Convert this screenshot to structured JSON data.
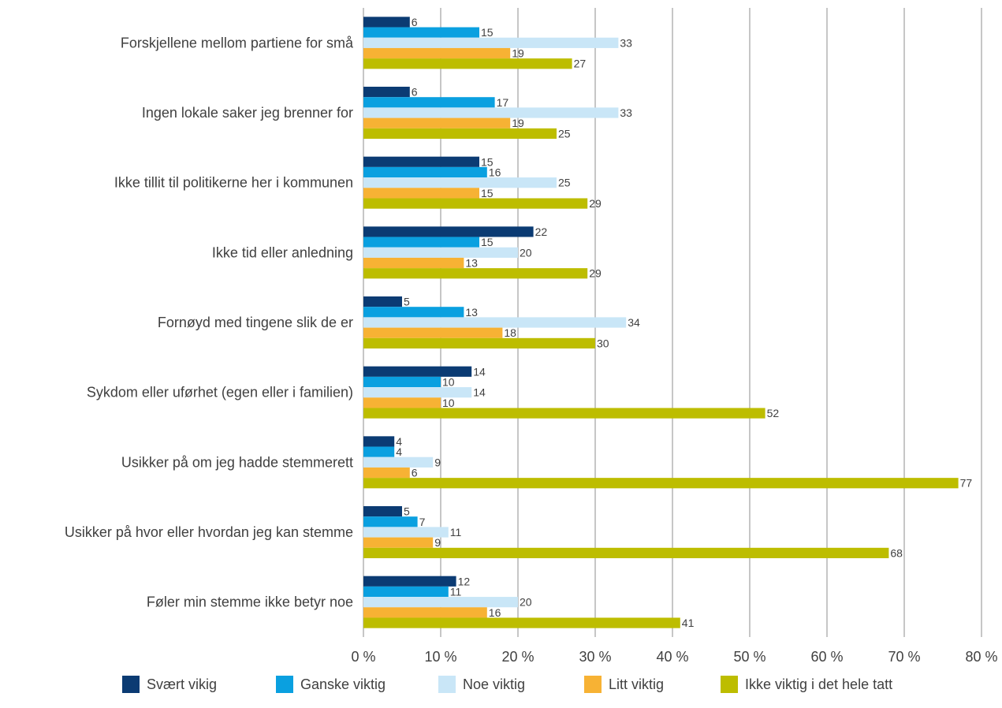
{
  "chart_data": {
    "type": "bar",
    "orientation": "horizontal",
    "categories": [
      "Forskjellene mellom partiene for små",
      "Ingen lokale saker jeg brenner for",
      "Ikke tillit til politikerne her i kommunen",
      "Ikke tid eller anledning",
      "Fornøyd med tingene slik de er",
      "Sykdom eller uførhet (egen eller i familien)",
      "Usikker på om jeg hadde stemmerett",
      "Usikker på hvor eller hvordan jeg kan stemme",
      "Føler min stemme ikke betyr noe"
    ],
    "series": [
      {
        "name": "Svært vikig",
        "color": "#0b3b73",
        "values": [
          6,
          6,
          15,
          22,
          5,
          14,
          4,
          5,
          12
        ]
      },
      {
        "name": "Ganske viktig",
        "color": "#0aa0e0",
        "values": [
          15,
          17,
          16,
          15,
          13,
          10,
          4,
          7,
          11
        ]
      },
      {
        "name": "Noe viktig",
        "color": "#c9e6f7",
        "values": [
          33,
          33,
          25,
          20,
          34,
          14,
          9,
          11,
          20
        ]
      },
      {
        "name": "Litt viktig",
        "color": "#f7b234",
        "values": [
          19,
          19,
          15,
          13,
          18,
          10,
          6,
          9,
          16
        ]
      },
      {
        "name": "Ikke viktig i det hele tatt",
        "color": "#bdbd00",
        "values": [
          27,
          25,
          29,
          29,
          30,
          52,
          77,
          68,
          41
        ]
      }
    ],
    "xlim": [
      0,
      80
    ],
    "xticks": [
      0,
      10,
      20,
      30,
      40,
      50,
      60,
      70,
      80
    ],
    "xtick_labels": [
      "0 %",
      "10 %",
      "20 %",
      "30 %",
      "40 %",
      "50 %",
      "60 %",
      "70 %",
      "80 %"
    ],
    "title": "",
    "xlabel": "",
    "ylabel": "",
    "grid": "vertical",
    "legend_position": "bottom",
    "gridline_color": "#8c8c8c",
    "text_color": "#404040"
  }
}
